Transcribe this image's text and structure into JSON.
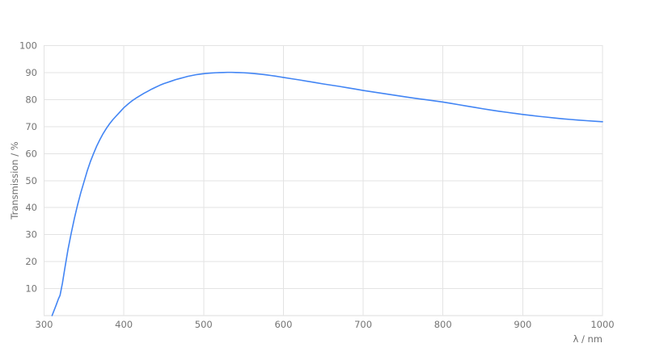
{
  "window": {
    "background_color": "#ffffff"
  },
  "chart_data": {
    "type": "line",
    "title": "",
    "xlabel": "λ / nm",
    "ylabel": "Transmission / %",
    "xlim": [
      300,
      1000
    ],
    "ylim": [
      0,
      100
    ],
    "x_ticks": [
      300,
      400,
      500,
      600,
      700,
      800,
      900,
      1000
    ],
    "y_ticks": [
      10,
      20,
      30,
      40,
      50,
      60,
      70,
      80,
      90,
      100
    ],
    "grid": true,
    "legend_position": "none",
    "colors": {
      "line": "#4285f4",
      "grid": "#e3e3e3",
      "frame": "#dedede",
      "tick_text": "#757575"
    },
    "series": [
      {
        "name": "Transmission",
        "color": "#4285f4",
        "points": [
          [
            310,
            0
          ],
          [
            312,
            1.5
          ],
          [
            315,
            3.8
          ],
          [
            318,
            6.2
          ],
          [
            320,
            7.5
          ],
          [
            323,
            12
          ],
          [
            326,
            17.5
          ],
          [
            330,
            24.5
          ],
          [
            334,
            30.5
          ],
          [
            338,
            36
          ],
          [
            342,
            41
          ],
          [
            346,
            45.5
          ],
          [
            350,
            49.5
          ],
          [
            354,
            53.5
          ],
          [
            358,
            57
          ],
          [
            362,
            60
          ],
          [
            366,
            62.8
          ],
          [
            370,
            65.2
          ],
          [
            374,
            67.4
          ],
          [
            378,
            69.3
          ],
          [
            382,
            71
          ],
          [
            386,
            72.5
          ],
          [
            390,
            73.8
          ],
          [
            395,
            75.4
          ],
          [
            400,
            77
          ],
          [
            405,
            78.3
          ],
          [
            410,
            79.5
          ],
          [
            415,
            80.5
          ],
          [
            420,
            81.4
          ],
          [
            425,
            82.3
          ],
          [
            430,
            83.1
          ],
          [
            435,
            83.9
          ],
          [
            440,
            84.6
          ],
          [
            445,
            85.3
          ],
          [
            450,
            85.9
          ],
          [
            455,
            86.4
          ],
          [
            460,
            86.9
          ],
          [
            465,
            87.4
          ],
          [
            470,
            87.8
          ],
          [
            475,
            88.2
          ],
          [
            480,
            88.6
          ],
          [
            485,
            88.9
          ],
          [
            490,
            89.2
          ],
          [
            495,
            89.4
          ],
          [
            500,
            89.6
          ],
          [
            505,
            89.75
          ],
          [
            510,
            89.85
          ],
          [
            515,
            89.95
          ],
          [
            520,
            90.0
          ],
          [
            525,
            90.05
          ],
          [
            530,
            90.1
          ],
          [
            535,
            90.1
          ],
          [
            540,
            90.05
          ],
          [
            545,
            90.0
          ],
          [
            550,
            89.95
          ],
          [
            555,
            89.85
          ],
          [
            560,
            89.75
          ],
          [
            565,
            89.6
          ],
          [
            570,
            89.45
          ],
          [
            575,
            89.3
          ],
          [
            580,
            89.1
          ],
          [
            585,
            88.9
          ],
          [
            590,
            88.7
          ],
          [
            595,
            88.45
          ],
          [
            600,
            88.2
          ],
          [
            610,
            87.75
          ],
          [
            620,
            87.3
          ],
          [
            630,
            86.8
          ],
          [
            640,
            86.3
          ],
          [
            650,
            85.8
          ],
          [
            660,
            85.35
          ],
          [
            670,
            84.9
          ],
          [
            680,
            84.4
          ],
          [
            690,
            83.9
          ],
          [
            700,
            83.4
          ],
          [
            710,
            82.95
          ],
          [
            720,
            82.5
          ],
          [
            730,
            82.05
          ],
          [
            740,
            81.6
          ],
          [
            750,
            81.15
          ],
          [
            760,
            80.7
          ],
          [
            770,
            80.3
          ],
          [
            780,
            79.9
          ],
          [
            790,
            79.5
          ],
          [
            800,
            79.1
          ],
          [
            810,
            78.6
          ],
          [
            820,
            78.1
          ],
          [
            830,
            77.6
          ],
          [
            840,
            77.1
          ],
          [
            850,
            76.6
          ],
          [
            860,
            76.15
          ],
          [
            870,
            75.7
          ],
          [
            880,
            75.3
          ],
          [
            890,
            74.9
          ],
          [
            900,
            74.5
          ],
          [
            910,
            74.15
          ],
          [
            920,
            73.8
          ],
          [
            930,
            73.5
          ],
          [
            940,
            73.2
          ],
          [
            950,
            72.9
          ],
          [
            960,
            72.65
          ],
          [
            970,
            72.4
          ],
          [
            980,
            72.2
          ],
          [
            990,
            72.0
          ],
          [
            1000,
            71.8
          ]
        ]
      }
    ]
  }
}
